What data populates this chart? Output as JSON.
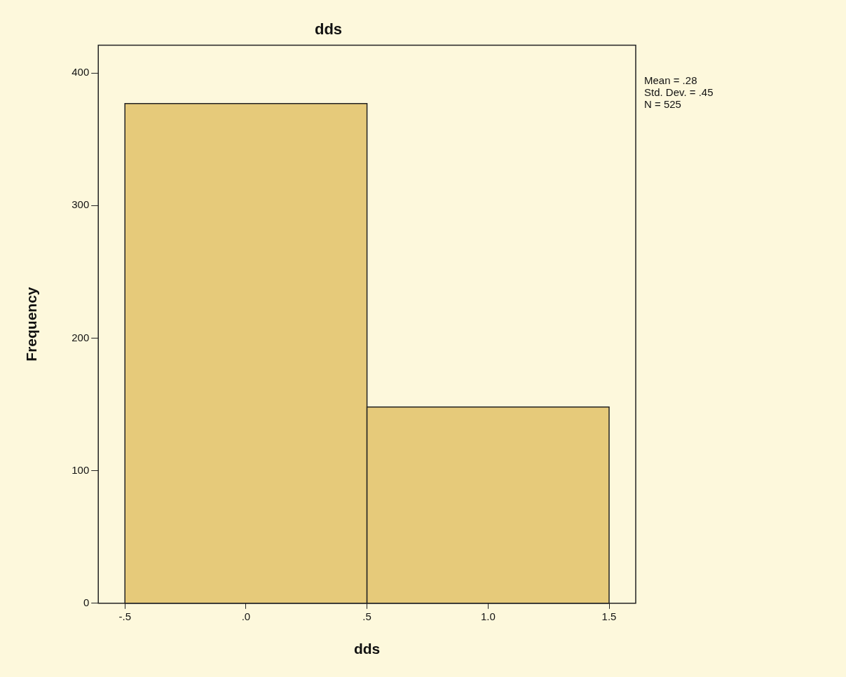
{
  "chart_data": {
    "type": "histogram",
    "title": "dds",
    "xlabel": "dds",
    "ylabel": "Frequency",
    "bins": [
      -0.5,
      0.5,
      1.5
    ],
    "values": [
      377,
      148
    ],
    "color": "#e6ca7a",
    "xlim": [
      -0.61,
      1.61
    ],
    "xticks": [
      {
        "value": -0.5,
        "label": "-.5"
      },
      {
        "value": 0,
        "label": ".0"
      },
      {
        "value": 0.5,
        "label": ".5"
      },
      {
        "value": 1,
        "label": "1.0"
      },
      {
        "value": 1.5,
        "label": "1.5"
      }
    ],
    "ylim": [
      0,
      421
    ],
    "yticks": [
      0,
      100,
      200,
      300,
      400
    ],
    "annotations": [
      "Mean = .28",
      "Std. Dev. = .45",
      "N = 525"
    ]
  }
}
